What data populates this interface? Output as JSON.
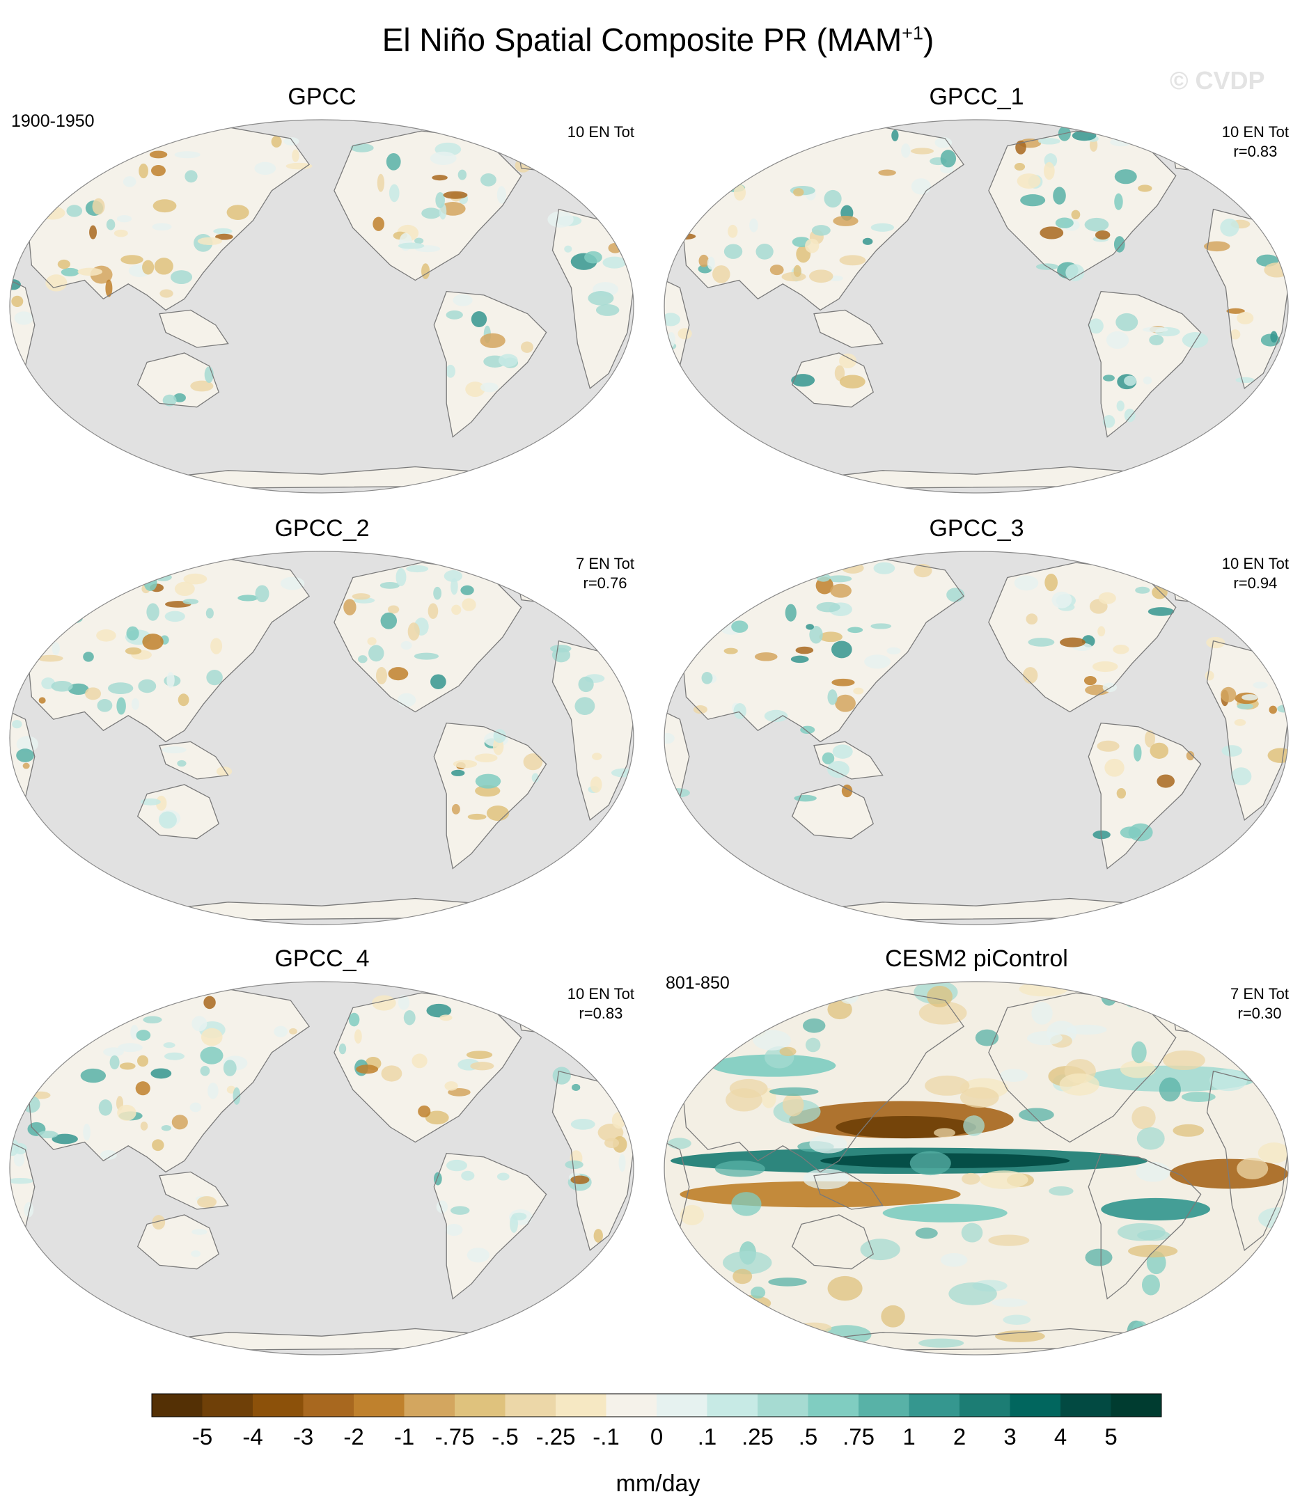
{
  "title": {
    "main": "El Niño Spatial Composite PR (MAM",
    "superscript": "+1",
    "close": ")"
  },
  "watermark": "© CVDP",
  "panels": [
    {
      "title": "GPCC",
      "period": "1900-1950",
      "stat_line1": "10 EN Tot",
      "stat_line2": ""
    },
    {
      "title": "GPCC_1",
      "period": "",
      "stat_line1": "10 EN Tot",
      "stat_line2": "r=0.83"
    },
    {
      "title": "GPCC_2",
      "period": "",
      "stat_line1": "7 EN Tot",
      "stat_line2": "r=0.76"
    },
    {
      "title": "GPCC_3",
      "period": "",
      "stat_line1": "10 EN Tot",
      "stat_line2": "r=0.94"
    },
    {
      "title": "GPCC_4",
      "period": "",
      "stat_line1": "10 EN Tot",
      "stat_line2": "r=0.83"
    },
    {
      "title": "CESM2 piControl",
      "period": "801-850",
      "stat_line1": "7 EN Tot",
      "stat_line2": "r=0.30"
    }
  ],
  "colorbar": {
    "units": "mm/day",
    "labels": [
      "-5",
      "-4",
      "-3",
      "-2",
      "-1",
      "-.75",
      "-.5",
      "-.25",
      "-.1",
      "0",
      ".1",
      ".25",
      ".5",
      ".75",
      "1",
      "2",
      "3",
      "4",
      "5"
    ],
    "colors": [
      "#543005",
      "#6f4008",
      "#8c510a",
      "#a8681f",
      "#bf812d",
      "#d3a65f",
      "#dfc27d",
      "#ecd7a8",
      "#f6e8c3",
      "#f5f2ea",
      "#e6f2f0",
      "#c7eae5",
      "#a6dbd2",
      "#80cdc1",
      "#58b2a7",
      "#35978f",
      "#1c7d74",
      "#01665e",
      "#024a42",
      "#003c30"
    ]
  },
  "map_colors": {
    "ocean": "#e1e1e1",
    "coast": "#7a7a7a"
  }
}
